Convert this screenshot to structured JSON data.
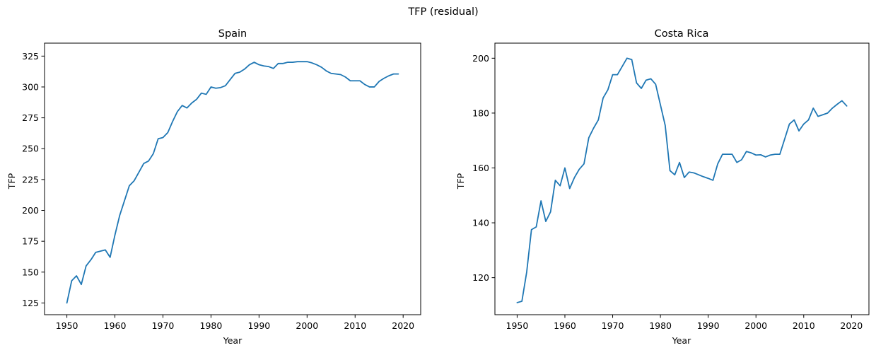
{
  "figure": {
    "suptitle": "TFP (residual)"
  },
  "colors": {
    "line": "#1f77b4",
    "axis": "#000000",
    "background": "#ffffff"
  },
  "chart_data": [
    {
      "type": "line",
      "title": "Spain",
      "xlabel": "Year",
      "ylabel": "TFP",
      "xlim": [
        1945.35,
        2023.65
      ],
      "ylim": [
        115.5,
        335.5
      ],
      "xticks": [
        1950,
        1960,
        1970,
        1980,
        1990,
        2000,
        2010,
        2020
      ],
      "yticks": [
        125,
        150,
        175,
        200,
        225,
        250,
        275,
        300,
        325
      ],
      "grid": false,
      "series": [
        {
          "x": [
            1950,
            1951,
            1952,
            1953,
            1954,
            1955,
            1956,
            1957,
            1958,
            1959,
            1960,
            1961,
            1962,
            1963,
            1964,
            1965,
            1966,
            1967,
            1968,
            1969,
            1970,
            1971,
            1972,
            1973,
            1974,
            1975,
            1976,
            1977,
            1978,
            1979,
            1980,
            1981,
            1982,
            1983,
            1984,
            1985,
            1986,
            1987,
            1988,
            1989,
            1990,
            1991,
            1992,
            1993,
            1994,
            1995,
            1996,
            1997,
            1998,
            1999,
            2000,
            2001,
            2002,
            2003,
            2004,
            2005,
            2006,
            2007,
            2008,
            2009,
            2010,
            2011,
            2012,
            2013,
            2014,
            2015,
            2016,
            2017,
            2018,
            2019
          ],
          "y": [
            125,
            143,
            147,
            140,
            155,
            160,
            166,
            167,
            168,
            162,
            180,
            196,
            208,
            220,
            224,
            231,
            238,
            240,
            246,
            258,
            259,
            263,
            272,
            280,
            285,
            283,
            287,
            290,
            295,
            294,
            300,
            299,
            299.5,
            301,
            306,
            311,
            312,
            314.5,
            318,
            320,
            318,
            317,
            316.5,
            315,
            319,
            319,
            320,
            320,
            320.5,
            320.5,
            320.5,
            319.5,
            318,
            316,
            313,
            311,
            310.5,
            310,
            308,
            305,
            305,
            305,
            302,
            300,
            300,
            304.5,
            307,
            309,
            310.5,
            310.5
          ]
        }
      ]
    },
    {
      "type": "line",
      "title": "Costa Rica",
      "xlabel": "Year",
      "ylabel": "TFP",
      "xlim": [
        1945.35,
        2023.65
      ],
      "ylim": [
        106.5,
        205.5
      ],
      "xticks": [
        1950,
        1960,
        1970,
        1980,
        1990,
        2000,
        2010,
        2020
      ],
      "yticks": [
        120,
        140,
        160,
        180,
        200
      ],
      "grid": false,
      "series": [
        {
          "x": [
            1950,
            1951,
            1952,
            1953,
            1954,
            1955,
            1956,
            1957,
            1958,
            1959,
            1960,
            1961,
            1962,
            1963,
            1964,
            1965,
            1966,
            1967,
            1968,
            1969,
            1970,
            1971,
            1972,
            1973,
            1974,
            1975,
            1976,
            1977,
            1978,
            1979,
            1980,
            1981,
            1982,
            1983,
            1984,
            1985,
            1986,
            1987,
            1988,
            1989,
            1990,
            1991,
            1992,
            1993,
            1994,
            1995,
            1996,
            1997,
            1998,
            1999,
            2000,
            2001,
            2002,
            2003,
            2004,
            2005,
            2006,
            2007,
            2008,
            2009,
            2010,
            2011,
            2012,
            2013,
            2014,
            2015,
            2016,
            2017,
            2018,
            2019
          ],
          "y": [
            110.9,
            111.4,
            122,
            137.5,
            138.5,
            148,
            140.5,
            144,
            155.5,
            153.5,
            160,
            152.5,
            156.5,
            159.5,
            161.5,
            171,
            174.5,
            177.5,
            185.5,
            188.5,
            194,
            194,
            197,
            200,
            199.5,
            191,
            189,
            192,
            192.5,
            190.5,
            183,
            175.5,
            159,
            157.5,
            162,
            156.5,
            158.5,
            158.2,
            157.5,
            156.8,
            156.2,
            155.5,
            161.5,
            165,
            165,
            165,
            162,
            163,
            166,
            165.5,
            164.7,
            164.8,
            164,
            164.7,
            165,
            165,
            170.5,
            176,
            177.5,
            173.5,
            176,
            177.5,
            181.8,
            178.8,
            179.4,
            180,
            181.8,
            183.2,
            184.5,
            182.6
          ]
        }
      ]
    }
  ]
}
